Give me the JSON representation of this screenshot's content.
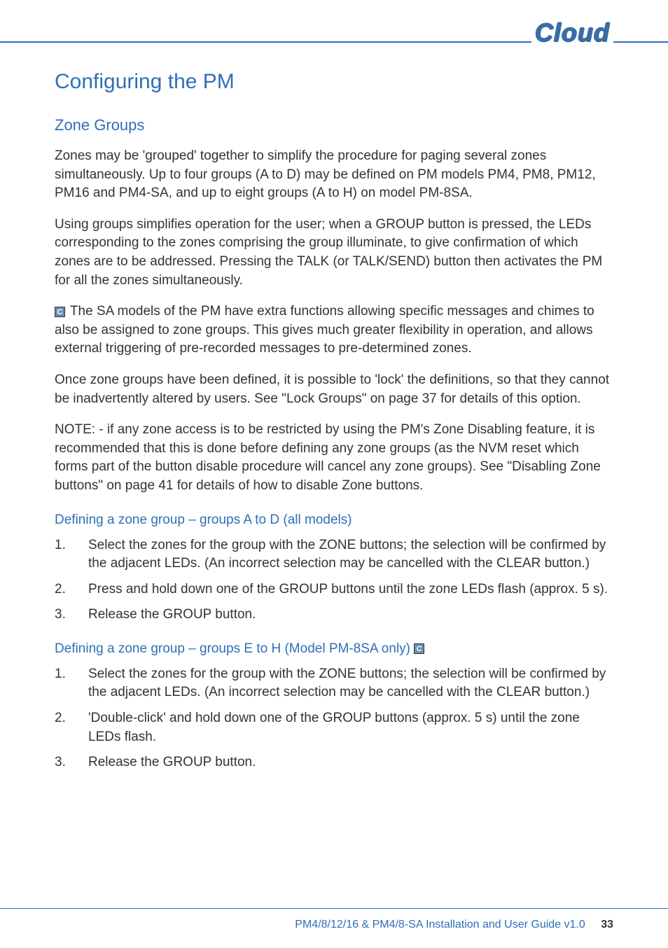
{
  "logo": "Cloud",
  "h1_title": "Configuring the PM",
  "h2_title": "Zone Groups",
  "para1": "Zones may be 'grouped' together to simplify the procedure for paging several zones simultaneously. Up to four groups (A to D) may be defined on PM models PM4, PM8, PM12, PM16 and PM4-SA, and up to eight groups (A to H) on model PM-8SA.",
  "para2": "Using groups simplifies operation for the user; when a GROUP button is pressed, the LEDs corresponding to the zones comprising the group illuminate, to give confirmation of which zones are to be addressed. Pressing the TALK (or TALK/SEND) button then activates the PM for all the zones simultaneously.",
  "para3": " The SA models of the PM have extra functions allowing specific messages and chimes to also be assigned to zone groups. This gives much greater flexibility in operation, and allows external triggering of pre-recorded messages to pre-determined zones.",
  "para4": "Once zone groups have been defined, it is possible to 'lock' the definitions, so that they cannot be inadvertently altered by users. See \"Lock Groups\" on page 37 for details of this option.",
  "para5": "NOTE: - if any zone access is to be restricted by using the PM's Zone Disabling feature, it is recommended that this is done before defining any zone groups (as the NVM reset which forms part of the button disable procedure will cancel any zone groups). See \"Disabling Zone buttons\" on page 41 for details of how to disable Zone buttons.",
  "h3_a": "Defining a zone group – groups A to D (all models)",
  "list_a": [
    "Select the zones for the group with the ZONE buttons; the selection will be confirmed by the adjacent LEDs. (An incorrect selection may be cancelled with the CLEAR button.)",
    "Press and hold down one of the GROUP buttons until the zone LEDs flash (approx. 5 s).",
    "Release the GROUP button."
  ],
  "h3_b": "Defining a zone group – groups E to H (Model PM-8SA only) ",
  "list_b": [
    "Select the zones for the group with the ZONE buttons; the selection will be confirmed by the adjacent LEDs. (An incorrect selection may be cancelled with the CLEAR button.)",
    "'Double-click' and hold down one of the GROUP buttons (approx. 5 s) until the zone LEDs flash.",
    "Release the GROUP button."
  ],
  "footer_text": "PM4/8/12/16 & PM4/8-SA Installation and User Guide v1.0",
  "page_number": "33",
  "info_icon_char": "C"
}
